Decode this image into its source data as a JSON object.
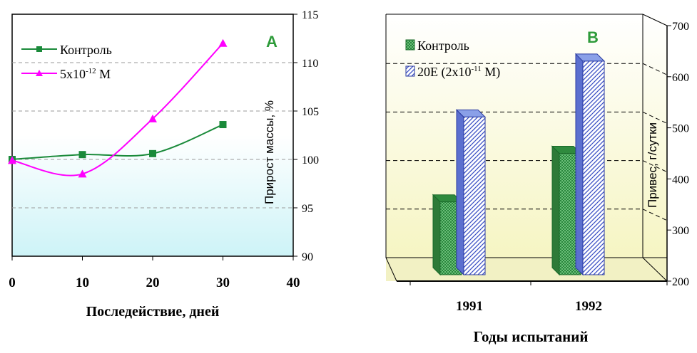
{
  "colors": {
    "control": "#1a8a3a",
    "treated_a": "#ff00ff",
    "treated_b": "#3a4fc4",
    "panel_a_bg_top": "#ffffff",
    "panel_a_bg_bottom": "#cdf3f7",
    "panel_b_bg_top": "#ffffff",
    "panel_b_bg_bottom": "#f5f4bd",
    "panel_letter": "#2e9b3a"
  },
  "chart_data": [
    {
      "panel": "A",
      "type": "line",
      "panel_letter": "A",
      "xlabel": "Последействие, дней",
      "ylabel": "Прирост массы, %",
      "xlim": [
        0,
        40
      ],
      "ylim": [
        90,
        115
      ],
      "x_ticks": [
        "0",
        "10",
        "20",
        "30",
        "40"
      ],
      "y_ticks": [
        "90",
        "95",
        "100",
        "105",
        "110",
        "115"
      ],
      "y_axis_side": "right",
      "grid": "horizontal dashed",
      "legend_position": "top-left",
      "series": [
        {
          "name": "Контроль",
          "marker": "square",
          "x": [
            0,
            10,
            20,
            30
          ],
          "y": [
            100,
            100.5,
            100.6,
            103.6
          ]
        },
        {
          "name": "5x10",
          "name_superscript": "-12",
          "name_suffix": " M",
          "marker": "triangle",
          "x": [
            0,
            10,
            20,
            30
          ],
          "y": [
            99.9,
            98.5,
            104.2,
            112
          ]
        }
      ]
    },
    {
      "panel": "B",
      "type": "bar",
      "panel_letter": "B",
      "xlabel": "Годы испытаний",
      "ylabel": "Привес, г/сутки",
      "ylim": [
        200,
        700
      ],
      "y_ticks": [
        "200",
        "300",
        "400",
        "500",
        "600",
        "700"
      ],
      "y_axis_side": "right",
      "grid": "horizontal dashed",
      "legend_position": "top-left",
      "categories": [
        "1991",
        "1992"
      ],
      "series": [
        {
          "name": "Контроль",
          "pattern": "cross-hatch",
          "values": [
            350,
            450
          ]
        },
        {
          "name": "20E (2x10",
          "name_superscript": "-11",
          "name_suffix": " M)",
          "pattern": "diagonal",
          "values": [
            525,
            640
          ]
        }
      ]
    }
  ]
}
